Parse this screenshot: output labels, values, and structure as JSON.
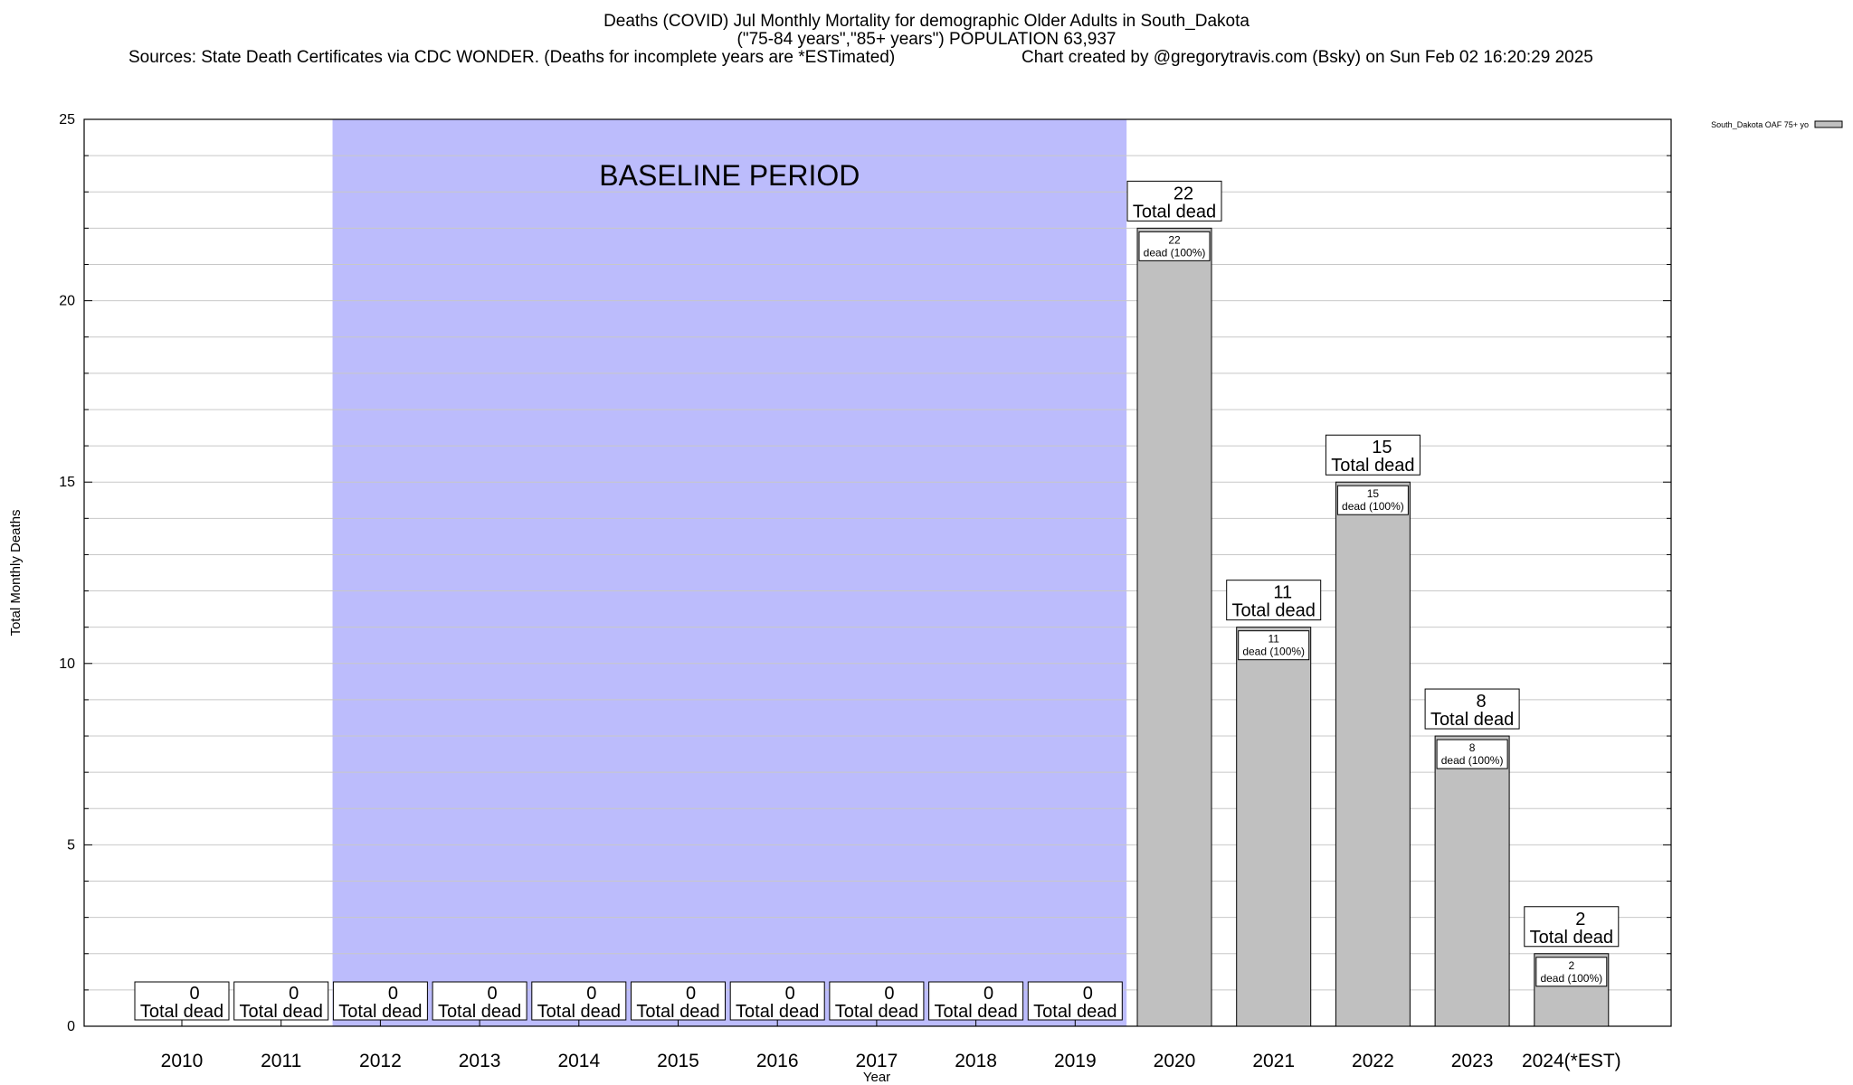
{
  "header": {
    "title_line1": "Deaths (COVID) Jul Monthly Mortality for demographic Older Adults in South_Dakota",
    "title_line2": "(\"75-84 years\",\"85+ years\") POPULATION 63,937",
    "sources": "Sources: State Death Certificates via CDC WONDER. (Deaths for incomplete years are *ESTimated)",
    "credit": "Chart created by @gregorytravis.com (Bsky) on Sun Feb 02 16:20:29 2025"
  },
  "chart_data": {
    "type": "bar",
    "xlabel": "Year",
    "ylabel": "Total Monthly Deaths",
    "ylim": [
      0,
      25
    ],
    "yticks": [
      0,
      5,
      10,
      15,
      20,
      25
    ],
    "grid": true,
    "legend": {
      "position": "top-right",
      "label": "South_Dakota OAF 75+ yo"
    },
    "baseline": {
      "label": "BASELINE PERIOD",
      "start": "2012",
      "end": "2019",
      "color": "#bcbcfc"
    },
    "bar_color": "#c0c0c0",
    "total_label": "Total dead",
    "segment_label_suffix": "dead (100%)",
    "categories": [
      "2010",
      "2011",
      "2012",
      "2013",
      "2014",
      "2015",
      "2016",
      "2017",
      "2018",
      "2019",
      "2020",
      "2021",
      "2022",
      "2023",
      "2024(*EST)"
    ],
    "values": [
      0,
      0,
      0,
      0,
      0,
      0,
      0,
      0,
      0,
      0,
      22,
      11,
      15,
      8,
      2
    ]
  }
}
